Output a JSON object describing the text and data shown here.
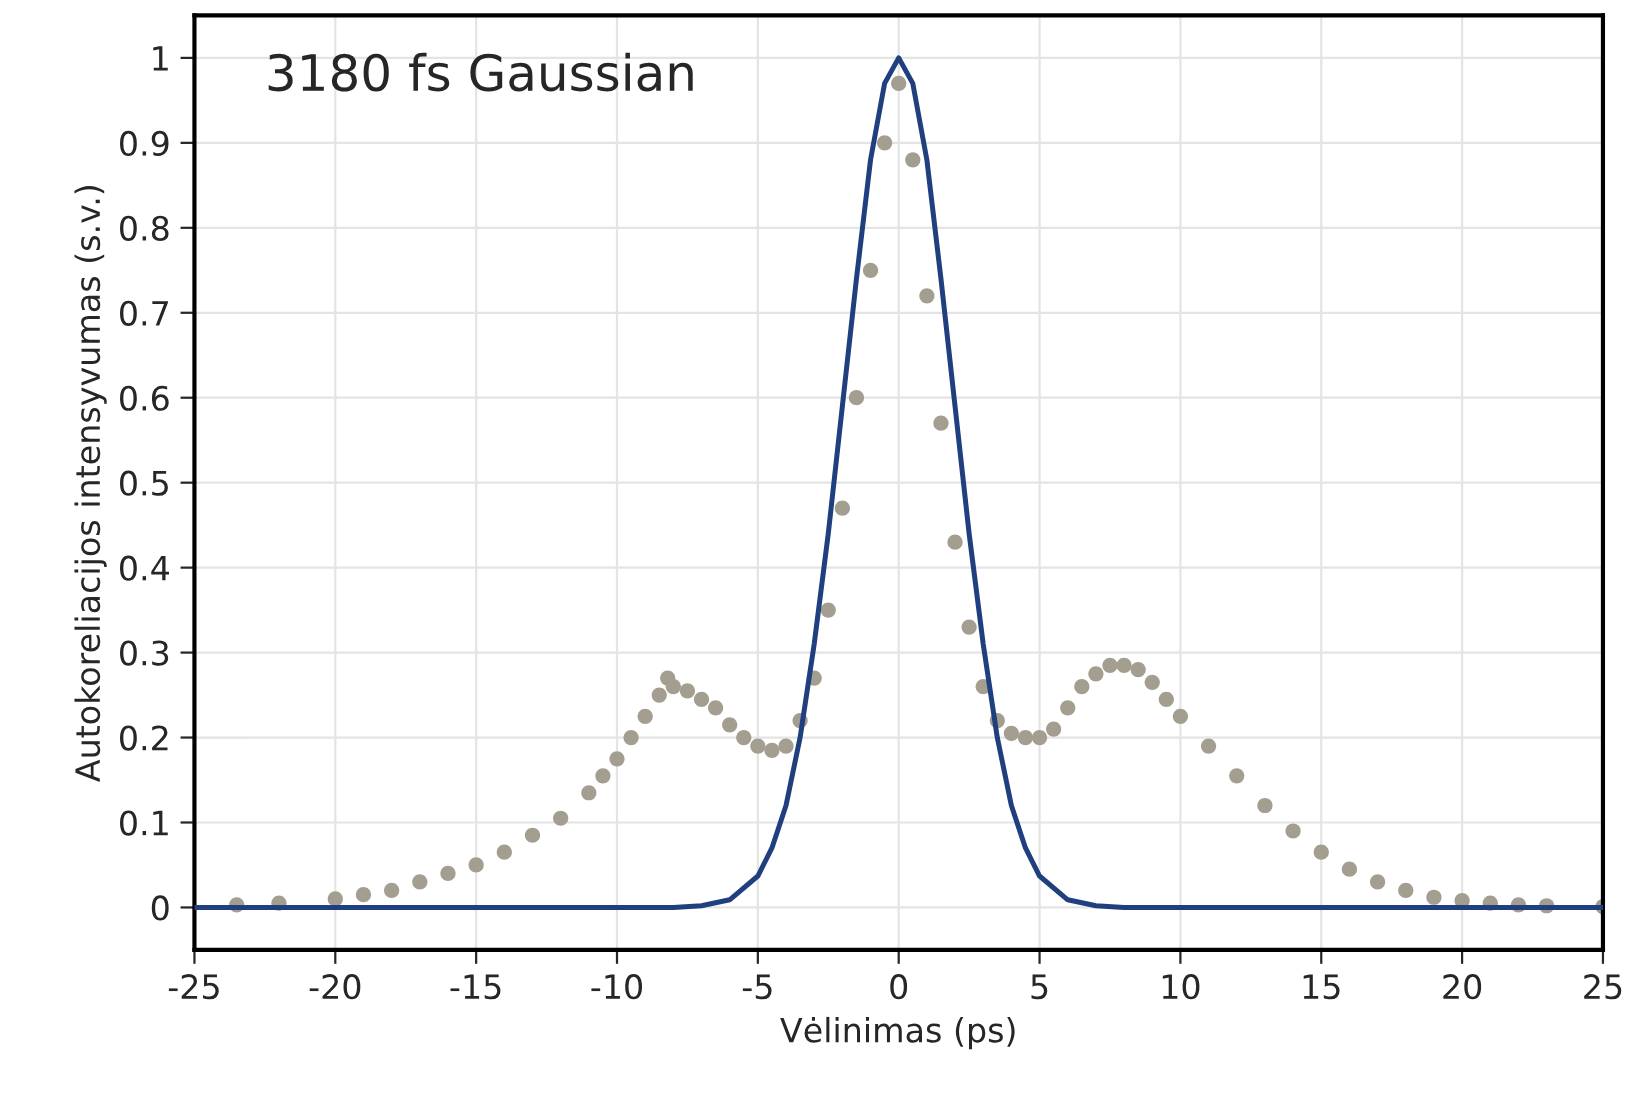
{
  "chart_data": {
    "type": "scatter",
    "xlabel": "Vėlinimas (ps)",
    "ylabel": "Autokoreliacijos intensyvumas (s.v.)",
    "annotations": [
      "3180 fs Gaussian"
    ],
    "xlim": [
      -25,
      25
    ],
    "xticks": [
      -25,
      -20,
      -15,
      -10,
      -5,
      0,
      5,
      10,
      15,
      20,
      25
    ],
    "ylim": [
      -0.05,
      1.05
    ],
    "yticks": [
      0,
      0.1,
      0.2,
      0.3,
      0.4,
      0.5,
      0.6,
      0.7,
      0.8,
      0.9,
      1
    ],
    "grid": true,
    "legend": false,
    "series": [
      {
        "color": "#a39e90",
        "marker": "circle",
        "x": [
          -23.5,
          -22,
          -20,
          -19,
          -18,
          -17,
          -16,
          -15,
          -14,
          -13,
          -12,
          -11,
          -10.5,
          -10,
          -9.5,
          -9,
          -8.5,
          -8.2,
          -8,
          -7.5,
          -7,
          -6.5,
          -6,
          -5.5,
          -5,
          -4.5,
          -4,
          -3.5,
          -3,
          -2.5,
          -2,
          -1.5,
          -1,
          -0.5,
          0,
          0.5,
          1,
          1.5,
          2,
          2.5,
          3,
          3.5,
          4,
          4.5,
          5,
          5.5,
          6,
          6.5,
          7,
          7.5,
          8,
          8.5,
          9,
          9.5,
          10,
          11,
          12,
          13,
          14,
          15,
          16,
          17,
          18,
          19,
          20,
          21,
          22,
          23,
          25
        ],
        "values": [
          0.003,
          0.005,
          0.01,
          0.015,
          0.02,
          0.03,
          0.04,
          0.05,
          0.065,
          0.085,
          0.105,
          0.135,
          0.155,
          0.175,
          0.2,
          0.225,
          0.25,
          0.27,
          0.26,
          0.255,
          0.245,
          0.235,
          0.215,
          0.2,
          0.19,
          0.185,
          0.19,
          0.22,
          0.27,
          0.35,
          0.47,
          0.6,
          0.75,
          0.9,
          0.97,
          0.88,
          0.72,
          0.57,
          0.43,
          0.33,
          0.26,
          0.22,
          0.205,
          0.2,
          0.2,
          0.21,
          0.235,
          0.26,
          0.275,
          0.285,
          0.285,
          0.28,
          0.265,
          0.245,
          0.225,
          0.19,
          0.155,
          0.12,
          0.09,
          0.065,
          0.045,
          0.03,
          0.02,
          0.012,
          0.008,
          0.005,
          0.003,
          0.002,
          0.001
        ]
      },
      {
        "type": "line",
        "color": "#1f3f7f",
        "line_style": "solid",
        "marker": "none",
        "x": [
          -25,
          -8,
          -7,
          -6,
          -5,
          -4.5,
          -4,
          -3.5,
          -3,
          -2.5,
          -2,
          -1.5,
          -1,
          -0.5,
          0,
          0.5,
          1,
          1.5,
          2,
          2.5,
          3,
          3.5,
          4,
          4.5,
          5,
          6,
          7,
          8,
          25
        ],
        "values": [
          0,
          0,
          0.002,
          0.009,
          0.037,
          0.07,
          0.12,
          0.2,
          0.31,
          0.44,
          0.59,
          0.74,
          0.88,
          0.97,
          1,
          0.97,
          0.88,
          0.74,
          0.59,
          0.44,
          0.31,
          0.2,
          0.12,
          0.07,
          0.037,
          0.009,
          0.002,
          0,
          0
        ]
      }
    ]
  }
}
